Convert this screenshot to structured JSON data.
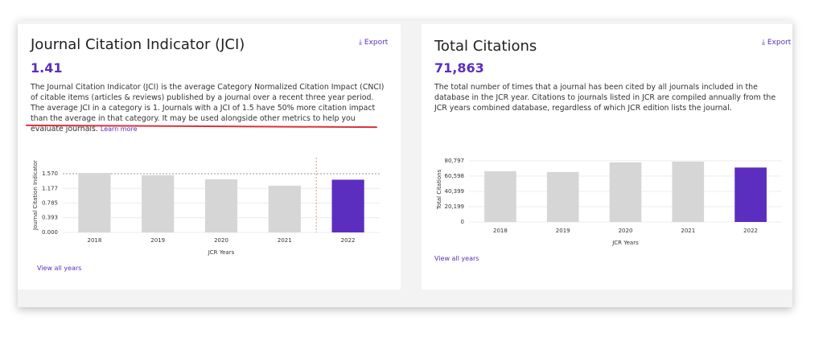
{
  "chart_data": [
    {
      "type": "bar",
      "title": "Journal Citation Indicator (JCI)",
      "export": "Export",
      "subtitle": "1.41",
      "description": "The Journal Citation Indicator (JCI) is the average Category Normalized Citation Impact (CNCI) of citable items (articles & reviews) published by a journal over a recent three year period. The average JCI in a category is 1. Journals with a JCI of 1.5 have 50% more citation impact than the average in that category. It may be used alongside other metrics to help you evaluate journals.",
      "description_link": "Learn more",
      "x_label": "JCR Years",
      "y_label": "Journal Citation Indicator",
      "footer_link": "View all years",
      "categories": [
        "2018",
        "2019",
        "2020",
        "2021",
        "2022"
      ],
      "values": [
        1.59,
        1.53,
        1.42,
        1.25,
        1.41
      ],
      "colors": [
        "#d6d6d6",
        "#d6d6d6",
        "#d6d6d6",
        "#d6d6d6",
        "#5b2ec0"
      ],
      "ylim": [
        0,
        2.0
      ],
      "yticks": [
        {
          "value": 0,
          "label": "0.000"
        },
        {
          "value": 0.393,
          "label": "0.393"
        },
        {
          "value": 0.785,
          "label": "0.785"
        },
        {
          "value": 1.177,
          "label": "1.177"
        },
        {
          "value": 1.57,
          "label": "1.570"
        }
      ],
      "grid": true
    },
    {
      "type": "bar",
      "title": "Total Citations",
      "export": "Export",
      "subtitle": "71,863",
      "description": "The total number of times that a journal has been cited by all journals included in the database in the JCR year. Citations to journals listed in JCR are compiled annually from the JCR years combined database, regardless of which JCR edition lists the journal.",
      "x_label": "JCR Years",
      "y_label": "Total Citations",
      "footer_link": "View all years",
      "categories": [
        "2018",
        "2019",
        "2020",
        "2021",
        "2022"
      ],
      "values": [
        67000,
        65900,
        78700,
        79700,
        71863
      ],
      "colors": [
        "#d6d6d6",
        "#d6d6d6",
        "#d6d6d6",
        "#d6d6d6",
        "#5b2ec0"
      ],
      "ylim": [
        0,
        86000
      ],
      "yticks": [
        0,
        {
          "value": 20199,
          "label": "20,199"
        },
        {
          "value": 40399,
          "label": "40,399"
        },
        {
          "value": 60598,
          "label": "60,598"
        },
        {
          "value": 80797,
          "label": "80,797"
        }
      ],
      "grid": true
    }
  ]
}
